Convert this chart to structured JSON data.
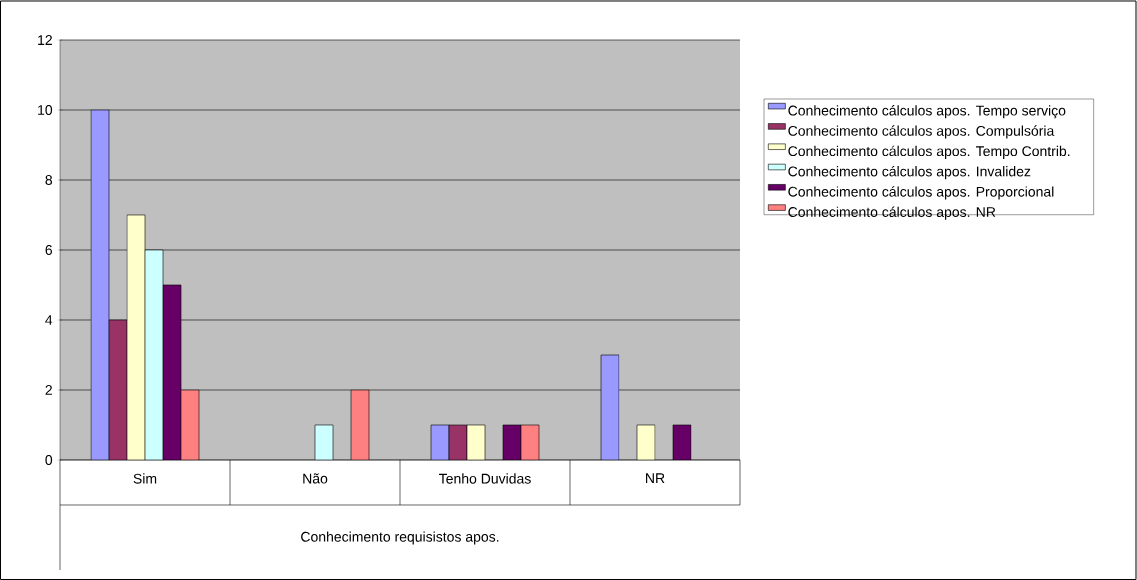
{
  "chart_data": {
    "type": "bar",
    "annotations": [
      "Conhecimento requisistos apos."
    ],
    "categories": [
      "Sim",
      "Não",
      "Tenho Duvidas",
      "NR"
    ],
    "series": [
      {
        "name": "Conhecimento cálculos apos. Tempo serviço",
        "color": "#9999ff",
        "values": [
          10,
          null,
          1,
          3
        ]
      },
      {
        "name": "Conhecimento cálculos apos. Compulsória",
        "color": "#993366",
        "values": [
          4,
          null,
          1,
          null
        ]
      },
      {
        "name": "Conhecimento cálculos apos. Tempo Contrib.",
        "color": "#ffffcc",
        "values": [
          7,
          null,
          1,
          1
        ]
      },
      {
        "name": "Conhecimento cálculos apos. Invalidez",
        "color": "#ccffff",
        "values": [
          6,
          1,
          null,
          null
        ]
      },
      {
        "name": "Conhecimento cálculos apos. Proporcional",
        "color": "#660066",
        "values": [
          5,
          null,
          1,
          1
        ]
      },
      {
        "name": "Conhecimento cálculos apos. NR",
        "color": "#ff8080",
        "values": [
          2,
          2,
          1,
          null
        ]
      }
    ],
    "ylim": [
      0,
      12
    ],
    "yticks": [
      0,
      2,
      4,
      6,
      8,
      10,
      12
    ],
    "grid": "y",
    "legend": "right"
  }
}
